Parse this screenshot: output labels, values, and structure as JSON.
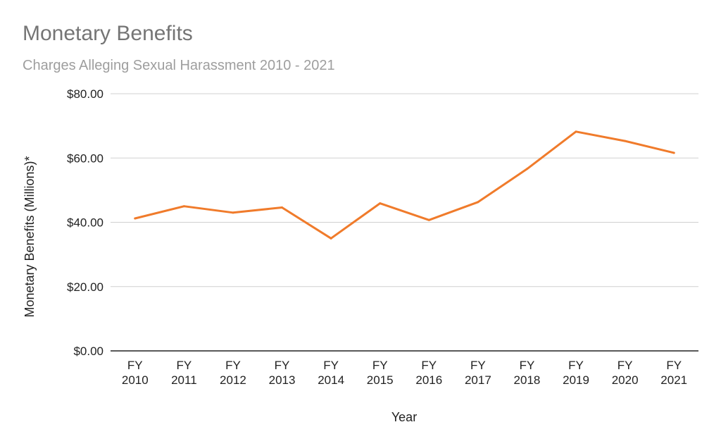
{
  "colors": {
    "background": "#ffffff",
    "title": "#757575",
    "subtitle": "#9e9e9e",
    "grid": "#d0d0d0",
    "axis": "#222222",
    "series": "#f07b2b"
  },
  "chart_data": {
    "type": "line",
    "title": "Monetary Benefits",
    "subtitle": "Charges Alleging Sexual Harassment 2010 - 2021",
    "xlabel": "Year",
    "ylabel": "Monetary Benefits (Millions)*",
    "categories": [
      [
        "FY",
        "2010"
      ],
      [
        "FY",
        "2011"
      ],
      [
        "FY",
        "2012"
      ],
      [
        "FY",
        "2013"
      ],
      [
        "FY",
        "2014"
      ],
      [
        "FY",
        "2015"
      ],
      [
        "FY",
        "2016"
      ],
      [
        "FY",
        "2017"
      ],
      [
        "FY",
        "2018"
      ],
      [
        "FY",
        "2019"
      ],
      [
        "FY",
        "2020"
      ],
      [
        "FY",
        "2021"
      ]
    ],
    "series": [
      {
        "values": [
          41.2,
          45.0,
          43.0,
          44.6,
          35.0,
          45.9,
          40.7,
          46.3,
          56.6,
          68.2,
          65.3,
          61.6
        ]
      }
    ],
    "yticks": [
      "$0.00",
      "$20.00",
      "$40.00",
      "$60.00",
      "$80.00"
    ],
    "ylim": [
      0,
      80
    ],
    "grid": true,
    "legend": "none"
  }
}
